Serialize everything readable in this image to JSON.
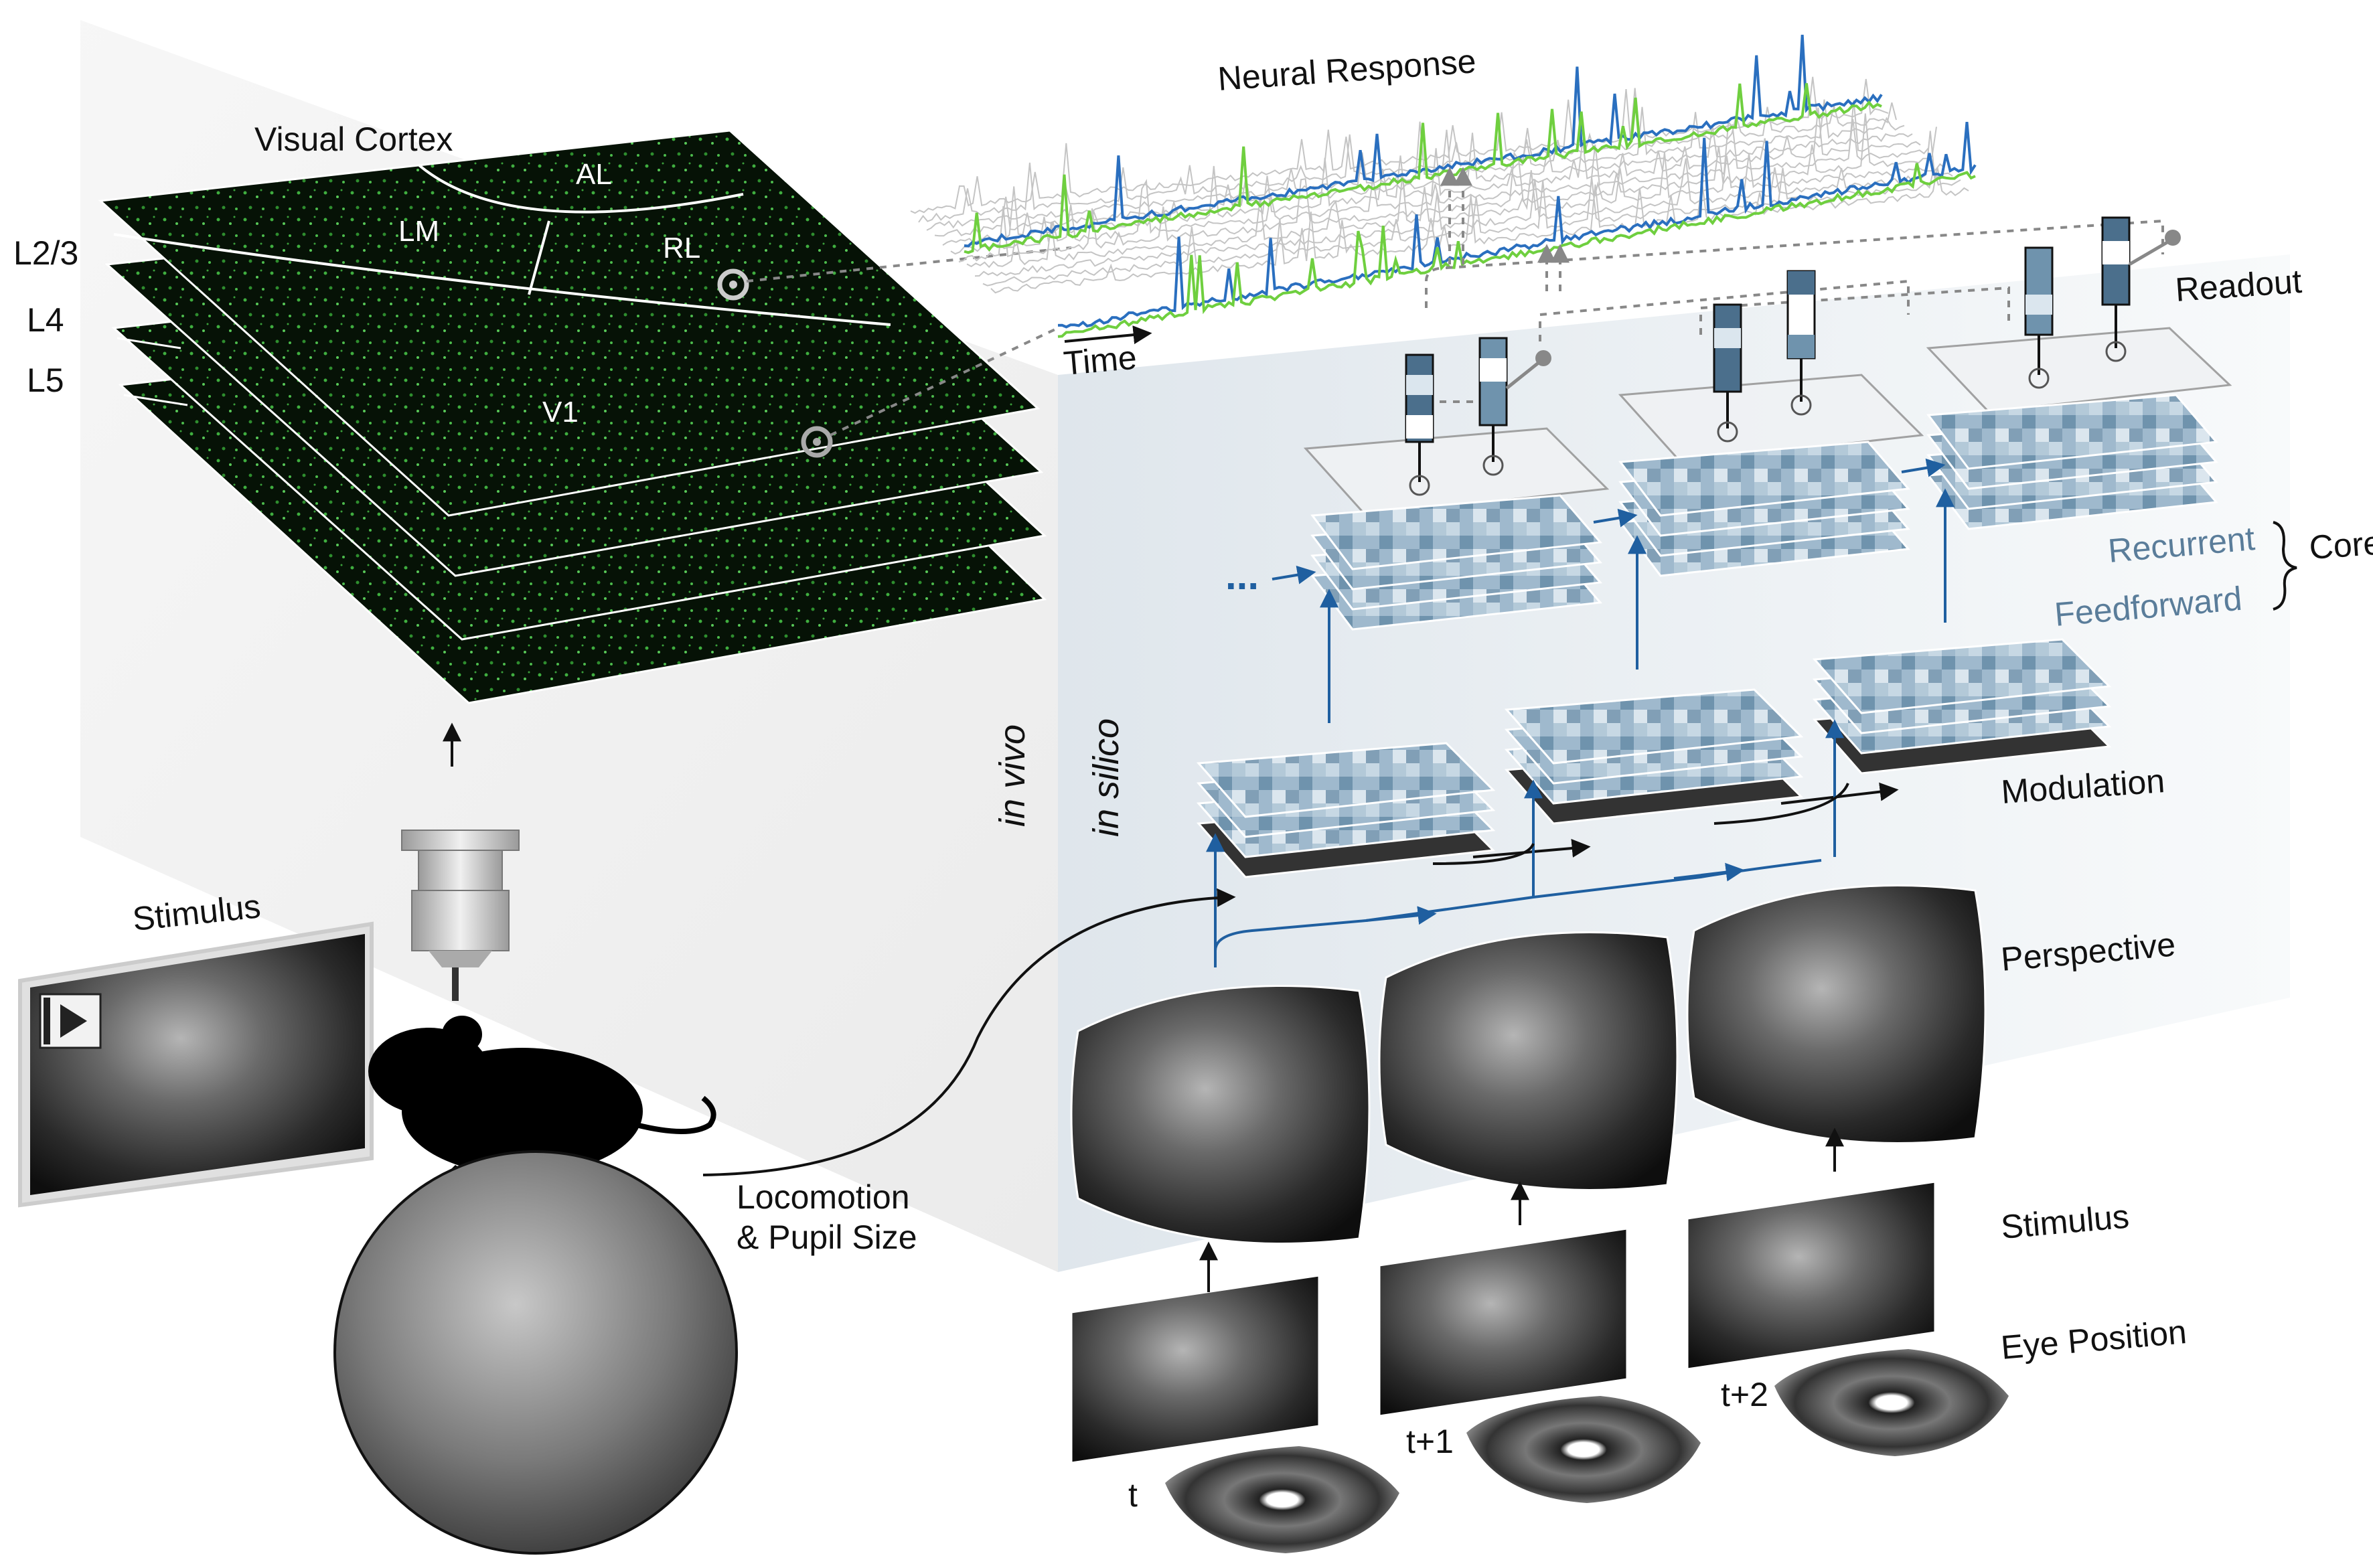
{
  "labels": {
    "visual_cortex": "Visual Cortex",
    "layer_l23": "L2/3",
    "layer_l4": "L4",
    "layer_l5": "L5",
    "area_al": "AL",
    "area_lm": "LM",
    "area_rl": "RL",
    "area_v1": "V1",
    "neural_response": "Neural Response",
    "time": "Time",
    "readout": "Readout",
    "recurrent": "Recurrent",
    "feedforward": "Feedforward",
    "core": "Core",
    "modulation": "Modulation",
    "perspective": "Perspective",
    "stimulus_right": "Stimulus",
    "eye_position": "Eye Position",
    "in_vivo": "in vivo",
    "in_silico": "in silico",
    "stimulus_left": "Stimulus",
    "locomotion_line1": "Locomotion",
    "locomotion_line2": "& Pupil Size",
    "ellipsis": "...",
    "t0": "t",
    "t1": "t+1",
    "t2": "t+2"
  },
  "colors": {
    "cortex_green": "#3fae3f",
    "trace_blue": "#2a6fbf",
    "trace_green": "#6fcf3f",
    "arrow_blue": "#1f5fa0",
    "label_blue": "#5a7d9a",
    "feature_blue": "#8fb0c8"
  }
}
